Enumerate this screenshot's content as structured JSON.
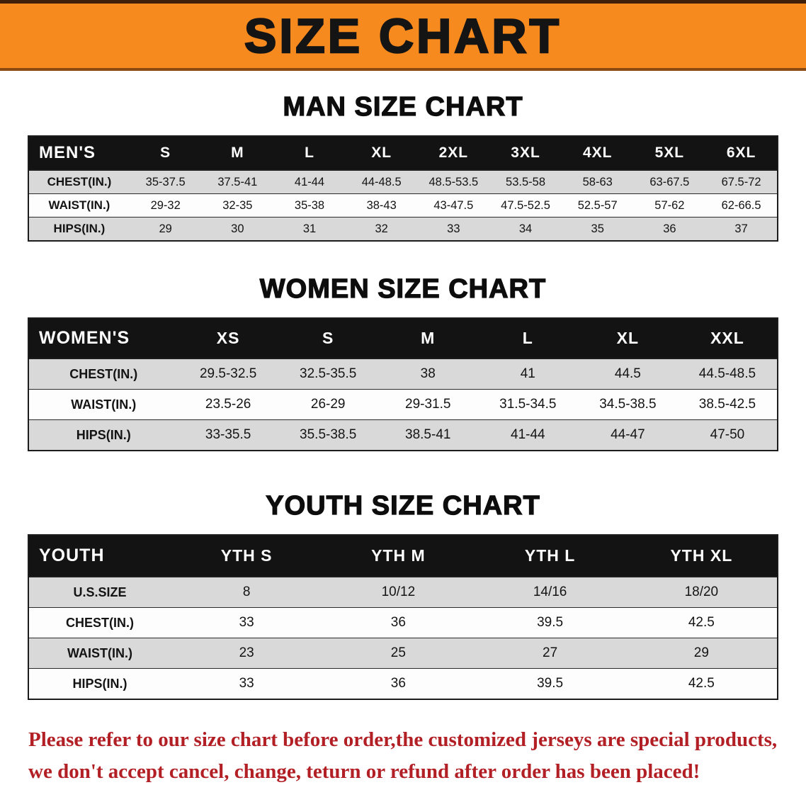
{
  "banner": {
    "title": "SIZE CHART"
  },
  "colors": {
    "banner_bg": "#f68a1e",
    "table_header_bg": "#131313",
    "row_shade": "#d9d9d9",
    "footer_text": "#b22026"
  },
  "sections": [
    {
      "heading": "MAN SIZE CHART",
      "table": {
        "header": [
          "MEN'S",
          "S",
          "M",
          "L",
          "XL",
          "2XL",
          "3XL",
          "4XL",
          "5XL",
          "6XL"
        ],
        "rows": [
          {
            "label": "CHEST(IN.)",
            "values": [
              "35-37.5",
              "37.5-41",
              "41-44",
              "44-48.5",
              "48.5-53.5",
              "53.5-58",
              "58-63",
              "63-67.5",
              "67.5-72"
            ]
          },
          {
            "label": "WAIST(IN.)",
            "values": [
              "29-32",
              "32-35",
              "35-38",
              "38-43",
              "43-47.5",
              "47.5-52.5",
              "52.5-57",
              "57-62",
              "62-66.5"
            ]
          },
          {
            "label": "HIPS(IN.)",
            "values": [
              "29",
              "30",
              "31",
              "32",
              "33",
              "34",
              "35",
              "36",
              "37"
            ]
          }
        ]
      }
    },
    {
      "heading": "WOMEN SIZE CHART",
      "table": {
        "header": [
          "WOMEN'S",
          "XS",
          "S",
          "M",
          "L",
          "XL",
          "XXL"
        ],
        "rows": [
          {
            "label": "CHEST(IN.)",
            "values": [
              "29.5-32.5",
              "32.5-35.5",
              "38",
              "41",
              "44.5",
              "44.5-48.5"
            ]
          },
          {
            "label": "WAIST(IN.)",
            "values": [
              "23.5-26",
              "26-29",
              "29-31.5",
              "31.5-34.5",
              "34.5-38.5",
              "38.5-42.5"
            ]
          },
          {
            "label": "HIPS(IN.)",
            "values": [
              "33-35.5",
              "35.5-38.5",
              "38.5-41",
              "41-44",
              "44-47",
              "47-50"
            ]
          }
        ]
      }
    },
    {
      "heading": "YOUTH SIZE CHART",
      "table": {
        "header": [
          "YOUTH",
          "YTH S",
          "YTH M",
          "YTH L",
          "YTH XL"
        ],
        "rows": [
          {
            "label": "U.S.SIZE",
            "values": [
              "8",
              "10/12",
              "14/16",
              "18/20"
            ]
          },
          {
            "label": "CHEST(IN.)",
            "values": [
              "33",
              "36",
              "39.5",
              "42.5"
            ]
          },
          {
            "label": "WAIST(IN.)",
            "values": [
              "23",
              "25",
              "27",
              "29"
            ]
          },
          {
            "label": "HIPS(IN.)",
            "values": [
              "33",
              "36",
              "39.5",
              "42.5"
            ]
          }
        ]
      }
    }
  ],
  "footer": {
    "line1": "Please refer to our size chart before order,the customized jerseys are special products,",
    "line2": "we don't accept cancel, change, teturn or refund after order has been placed!"
  }
}
